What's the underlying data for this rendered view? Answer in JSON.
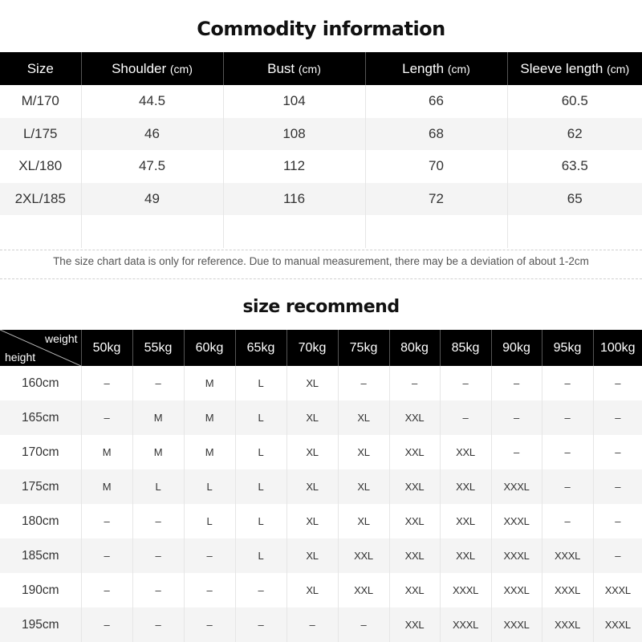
{
  "title1": "Commodity information",
  "table1": {
    "headers": [
      {
        "label": "Size",
        "unit": ""
      },
      {
        "label": "Shoulder",
        "unit": "(cm)"
      },
      {
        "label": "Bust",
        "unit": "(cm)"
      },
      {
        "label": "Length",
        "unit": "(cm)"
      },
      {
        "label": "Sleeve length",
        "unit": "(cm)"
      }
    ],
    "rows": [
      [
        "M/170",
        "44.5",
        "104",
        "66",
        "60.5"
      ],
      [
        "L/175",
        "46",
        "108",
        "68",
        "62"
      ],
      [
        "XL/180",
        "47.5",
        "112",
        "70",
        "63.5"
      ],
      [
        "2XL/185",
        "49",
        "116",
        "72",
        "65"
      ]
    ]
  },
  "note": "The size chart data is only for reference. Due to manual measurement, there may be a deviation of about 1-2cm",
  "title2": "size recommend",
  "table2": {
    "corner_weight": "weight",
    "corner_height": "height",
    "weights": [
      "50kg",
      "55kg",
      "60kg",
      "65kg",
      "70kg",
      "75kg",
      "80kg",
      "85kg",
      "90kg",
      "95kg",
      "100kg"
    ],
    "rows": [
      {
        "height": "160cm",
        "values": [
          "–",
          "–",
          "M",
          "L",
          "XL",
          "–",
          "–",
          "–",
          "–",
          "–",
          "–"
        ]
      },
      {
        "height": "165cm",
        "values": [
          "–",
          "M",
          "M",
          "L",
          "XL",
          "XL",
          "XXL",
          "–",
          "–",
          "–",
          "–"
        ]
      },
      {
        "height": "170cm",
        "values": [
          "M",
          "M",
          "M",
          "L",
          "XL",
          "XL",
          "XXL",
          "XXL",
          "–",
          "–",
          "–"
        ]
      },
      {
        "height": "175cm",
        "values": [
          "M",
          "L",
          "L",
          "L",
          "XL",
          "XL",
          "XXL",
          "XXL",
          "XXXL",
          "–",
          "–"
        ]
      },
      {
        "height": "180cm",
        "values": [
          "–",
          "–",
          "L",
          "L",
          "XL",
          "XL",
          "XXL",
          "XXL",
          "XXXL",
          "–",
          "–"
        ]
      },
      {
        "height": "185cm",
        "values": [
          "–",
          "–",
          "–",
          "L",
          "XL",
          "XXL",
          "XXL",
          "XXL",
          "XXXL",
          "XXXL",
          "–"
        ]
      },
      {
        "height": "190cm",
        "values": [
          "–",
          "–",
          "–",
          "–",
          "XL",
          "XXL",
          "XXL",
          "XXXL",
          "XXXL",
          "XXXL",
          "XXXL"
        ]
      },
      {
        "height": "195cm",
        "values": [
          "–",
          "–",
          "–",
          "–",
          "–",
          "–",
          "XXL",
          "XXXL",
          "XXXL",
          "XXXL",
          "XXXL"
        ]
      }
    ]
  }
}
